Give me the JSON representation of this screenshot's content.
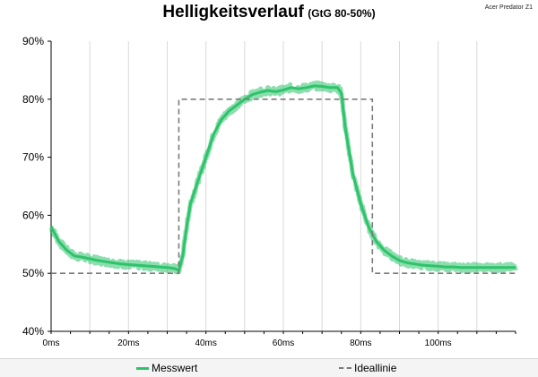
{
  "header": {
    "title": "Helligkeitsverlauf",
    "subtitle": "(GtG 80-50%)",
    "brand": "Acer Predator Z1"
  },
  "colors": {
    "measured": "#2ec36b",
    "ideal": "#7a7a7a",
    "grid": "#d9d9d9"
  },
  "chart_data": {
    "type": "line",
    "title": "Helligkeitsverlauf (GtG 80-50%)",
    "xlabel": "",
    "ylabel": "",
    "xlim": [
      0,
      120
    ],
    "ylim": [
      40,
      90
    ],
    "x_ticks": [
      0,
      20,
      40,
      60,
      80,
      100
    ],
    "x_tick_labels": [
      "0ms",
      "20ms",
      "40ms",
      "60ms",
      "80ms",
      "100ms"
    ],
    "y_ticks": [
      40,
      50,
      60,
      70,
      80,
      90
    ],
    "y_tick_labels": [
      "40%",
      "50%",
      "60%",
      "70%",
      "80%",
      "90%"
    ],
    "grid": {
      "vertical": true,
      "horizontal": false
    },
    "legend_position": "bottom",
    "series": [
      {
        "name": "Messwert",
        "style": "solid",
        "color": "#2ec36b",
        "x": [
          0,
          2,
          4,
          6,
          8,
          10,
          12,
          14,
          16,
          18,
          20,
          22,
          24,
          26,
          28,
          30,
          32,
          33,
          34,
          35,
          36,
          38,
          40,
          42,
          44,
          46,
          48,
          50,
          52,
          54,
          56,
          58,
          60,
          62,
          64,
          66,
          68,
          70,
          72,
          74,
          75,
          76,
          78,
          80,
          82,
          84,
          86,
          88,
          90,
          92,
          94,
          96,
          98,
          100,
          102,
          104,
          106,
          108,
          110,
          112,
          114,
          116,
          118,
          120
        ],
        "y": [
          58,
          55.5,
          54,
          53,
          52.8,
          52.5,
          52.2,
          52,
          51.8,
          51.6,
          51.5,
          51.4,
          51.3,
          51.2,
          51.1,
          51,
          50.8,
          50.5,
          53,
          58,
          62,
          66,
          70,
          74,
          76.5,
          78,
          79,
          80,
          80.8,
          81.2,
          81.5,
          81.3,
          81.6,
          82,
          81.8,
          82,
          82.3,
          82.2,
          82,
          82,
          81,
          75,
          67,
          62,
          58,
          55.5,
          54,
          53,
          52.2,
          51.8,
          51.6,
          51.4,
          51.3,
          51.2,
          51.1,
          51.1,
          51,
          51,
          51,
          51,
          51,
          51,
          51,
          51
        ]
      },
      {
        "name": "Ideallinie",
        "style": "dashed",
        "color": "#7a7a7a",
        "x": [
          0,
          33,
          33,
          83,
          83,
          120
        ],
        "y": [
          50,
          50,
          80,
          80,
          50,
          50
        ]
      }
    ]
  },
  "legend": {
    "items": [
      {
        "label": "Messwert"
      },
      {
        "label": "Ideallinie"
      }
    ]
  }
}
